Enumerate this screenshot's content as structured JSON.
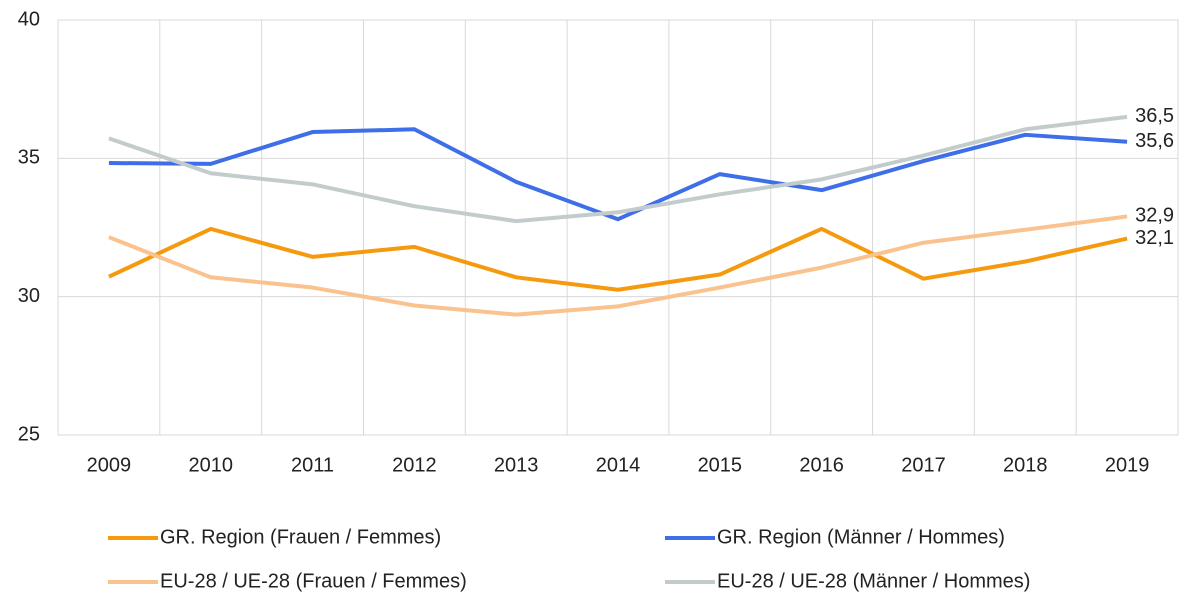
{
  "chart_data": {
    "type": "line",
    "categories": [
      "2009",
      "2010",
      "2011",
      "2012",
      "2013",
      "2014",
      "2015",
      "2016",
      "2017",
      "2018",
      "2019"
    ],
    "ylim": [
      25,
      40
    ],
    "yticks": [
      25,
      30,
      35,
      40
    ],
    "grid": true,
    "legend": "bottom",
    "series": [
      {
        "name": "GR. Region (Frauen / Femmes)",
        "color": "#f59a0f",
        "values": [
          30.72,
          32.45,
          31.44,
          31.8,
          30.7,
          30.25,
          30.8,
          32.45,
          30.65,
          31.27,
          32.1
        ],
        "value_labels": [
          null,
          null,
          null,
          null,
          null,
          null,
          null,
          null,
          null,
          null,
          "32,1"
        ]
      },
      {
        "name": "GR. Region (Männer / Hommes)",
        "color": "#3f6fe8",
        "values": [
          34.83,
          34.8,
          35.95,
          36.05,
          34.15,
          32.8,
          34.43,
          33.85,
          34.9,
          35.85,
          35.6
        ],
        "value_labels": [
          null,
          null,
          null,
          null,
          null,
          null,
          null,
          null,
          null,
          null,
          "35,6"
        ]
      },
      {
        "name": "EU-28 / UE-28 (Frauen / Femmes)",
        "color": "#f9c28f",
        "values": [
          32.15,
          30.7,
          30.33,
          29.68,
          29.35,
          29.65,
          30.33,
          31.05,
          31.95,
          32.42,
          32.9
        ],
        "value_labels": [
          null,
          null,
          null,
          null,
          null,
          null,
          null,
          null,
          null,
          null,
          "32,9"
        ]
      },
      {
        "name": "EU-28 / UE-28 (Männer / Hommes)",
        "color": "#c3cccc",
        "values": [
          35.72,
          34.46,
          34.06,
          33.27,
          32.73,
          33.05,
          33.7,
          34.24,
          35.1,
          36.05,
          36.5
        ],
        "value_labels": [
          null,
          null,
          null,
          null,
          null,
          null,
          null,
          null,
          null,
          null,
          "36,5"
        ]
      }
    ]
  }
}
